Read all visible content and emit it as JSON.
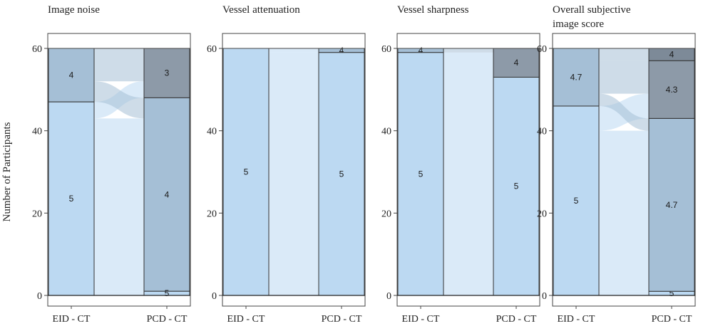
{
  "chart_data": {
    "type": "alluvial",
    "ylabel": "Number of Participants",
    "ylim": [
      0,
      60
    ],
    "yticks": [
      0,
      20,
      40,
      60
    ],
    "x_categories": [
      "EID - CT",
      "PCD - CT"
    ],
    "panels": [
      {
        "title": "Image noise",
        "axis_title": "Image noise",
        "bars": {
          "EID - CT": [
            {
              "label": "5",
              "value": 47,
              "color": "#bcd9f2"
            },
            {
              "label": "4",
              "value": 13,
              "color": "#a5bfd6"
            }
          ],
          "PCD - CT": [
            {
              "label": "5",
              "value": 1,
              "color": "#bcd9f2"
            },
            {
              "label": "4",
              "value": 47,
              "color": "#a5bfd6"
            },
            {
              "label": "3",
              "value": 12,
              "color": "#8d9aa8"
            }
          ]
        },
        "flows": [
          {
            "from": "5",
            "to": "5",
            "value": 1
          },
          {
            "from": "5",
            "to": "4",
            "value": 42
          },
          {
            "from": "5",
            "to": "3",
            "value": 4
          },
          {
            "from": "4",
            "to": "4",
            "value": 5
          },
          {
            "from": "4",
            "to": "3",
            "value": 8
          }
        ]
      },
      {
        "title": "Vessel attenuation",
        "axis_title": "Vessel attenuation",
        "bars": {
          "EID - CT": [
            {
              "label": "5",
              "value": 60,
              "color": "#bcd9f2"
            }
          ],
          "PCD - CT": [
            {
              "label": "5",
              "value": 59,
              "color": "#bcd9f2"
            },
            {
              "label": "4",
              "value": 1,
              "color": "#a5bfd6"
            }
          ]
        },
        "flows": [
          {
            "from": "5",
            "to": "5",
            "value": 59
          },
          {
            "from": "5",
            "to": "4",
            "value": 1
          }
        ]
      },
      {
        "title": "Vessel sharpness",
        "axis_title": "Vessel sharpness",
        "bars": {
          "EID - CT": [
            {
              "label": "5",
              "value": 59,
              "color": "#bcd9f2"
            },
            {
              "label": "4",
              "value": 1,
              "color": "#a5bfd6"
            }
          ],
          "PCD - CT": [
            {
              "label": "5",
              "value": 53,
              "color": "#bcd9f2"
            },
            {
              "label": "4",
              "value": 7,
              "color": "#8d9aa8"
            }
          ]
        },
        "flows": [
          {
            "from": "5",
            "to": "5",
            "value": 53
          },
          {
            "from": "5",
            "to": "4",
            "value": 6
          },
          {
            "from": "4",
            "to": "4",
            "value": 1
          }
        ]
      },
      {
        "title": "Overall subjective image score",
        "axis_title": "Overall subjective image score",
        "bars": {
          "EID - CT": [
            {
              "label": "5",
              "value": 46,
              "color": "#bcd9f2"
            },
            {
              "label": "4.7",
              "value": 14,
              "color": "#a5bfd6"
            }
          ],
          "PCD - CT": [
            {
              "label": "5",
              "value": 1,
              "color": "#bcd9f2"
            },
            {
              "label": "4.7",
              "value": 42,
              "color": "#a5bfd6"
            },
            {
              "label": "4.3",
              "value": 14,
              "color": "#8d9aa8"
            },
            {
              "label": "4",
              "value": 3,
              "color": "#7d8a98"
            }
          ]
        },
        "flows": [
          {
            "from": "5",
            "to": "5",
            "value": 1
          },
          {
            "from": "5",
            "to": "4.7",
            "value": 39
          },
          {
            "from": "5",
            "to": "4.3",
            "value": 6
          },
          {
            "from": "4.7",
            "to": "4.7",
            "value": 3
          },
          {
            "from": "4.7",
            "to": "4.3",
            "value": 8
          },
          {
            "from": "4.7",
            "to": "4",
            "value": 3
          }
        ]
      }
    ]
  }
}
